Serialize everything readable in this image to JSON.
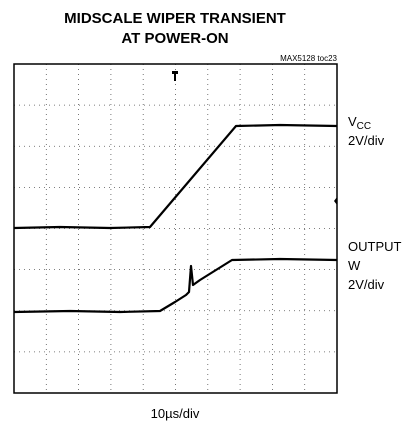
{
  "title_lines": [
    "MIDSCALE WIPER TRANSIENT",
    "AT POWER-ON"
  ],
  "note": "MAX5128 toc23",
  "vcc_label": {
    "main": "V",
    "sub": "CC",
    "scale": "2V/div"
  },
  "output_label": {
    "lines": [
      "OUTPUT",
      "W"
    ],
    "scale": "2V/div"
  },
  "time_scale": "10µs/div"
}
